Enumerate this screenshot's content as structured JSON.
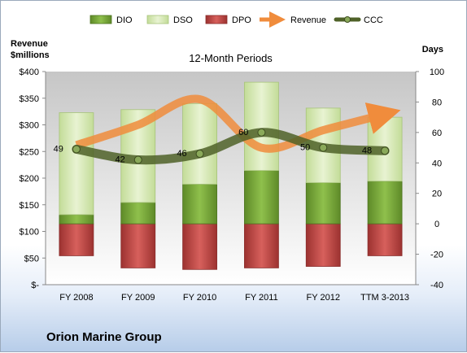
{
  "chart_data": {
    "type": "bar",
    "title": "12-Month Periods",
    "categories": [
      "FY 2008",
      "FY 2009",
      "FY 2010",
      "FY 2011",
      "FY 2012",
      "TTM 3-2013"
    ],
    "left_axis": {
      "label_line1": "Revenue",
      "label_line2": "$millions",
      "ylim": [
        0,
        400
      ],
      "ticks": [
        0,
        50,
        100,
        150,
        200,
        250,
        300,
        350,
        400
      ],
      "tick_labels": [
        "$-",
        "$50",
        "$100",
        "$150",
        "$200",
        "$250",
        "$300",
        "$350",
        "$400"
      ]
    },
    "right_axis": {
      "label": "Days",
      "ylim": [
        -40,
        100
      ],
      "ticks": [
        -40,
        -20,
        0,
        20,
        40,
        60,
        80,
        100
      ],
      "tick_labels": [
        "-40",
        "-20",
        "0",
        "20",
        "40",
        "60",
        "80",
        "100"
      ]
    },
    "series": [
      {
        "name": "DIO",
        "type": "stacked-bar",
        "axis": "right",
        "color": "#76a83a",
        "values": [
          6,
          14,
          26,
          35,
          27,
          28
        ]
      },
      {
        "name": "DSO",
        "type": "stacked-bar",
        "axis": "right",
        "color": "#d6e8b4",
        "values": [
          67,
          61,
          53,
          58,
          49,
          42
        ]
      },
      {
        "name": "DPO",
        "type": "negative-bar",
        "axis": "right",
        "color": "#c0504d",
        "values": [
          -21,
          -29,
          -30,
          -29,
          -28,
          -21
        ]
      },
      {
        "name": "Revenue",
        "type": "line",
        "axis": "left",
        "color": "#f08c3c",
        "values": [
          262,
          300,
          348,
          257,
          290,
          320
        ]
      },
      {
        "name": "CCC",
        "type": "line",
        "axis": "right",
        "color": "#4f6228",
        "values": [
          49,
          42,
          46,
          60,
          50,
          48
        ]
      }
    ],
    "data_labels": [
      "49",
      "42",
      "46",
      "60",
      "50",
      "48"
    ],
    "legend_position": "top",
    "grid": false
  },
  "company": "Orion Marine Group"
}
